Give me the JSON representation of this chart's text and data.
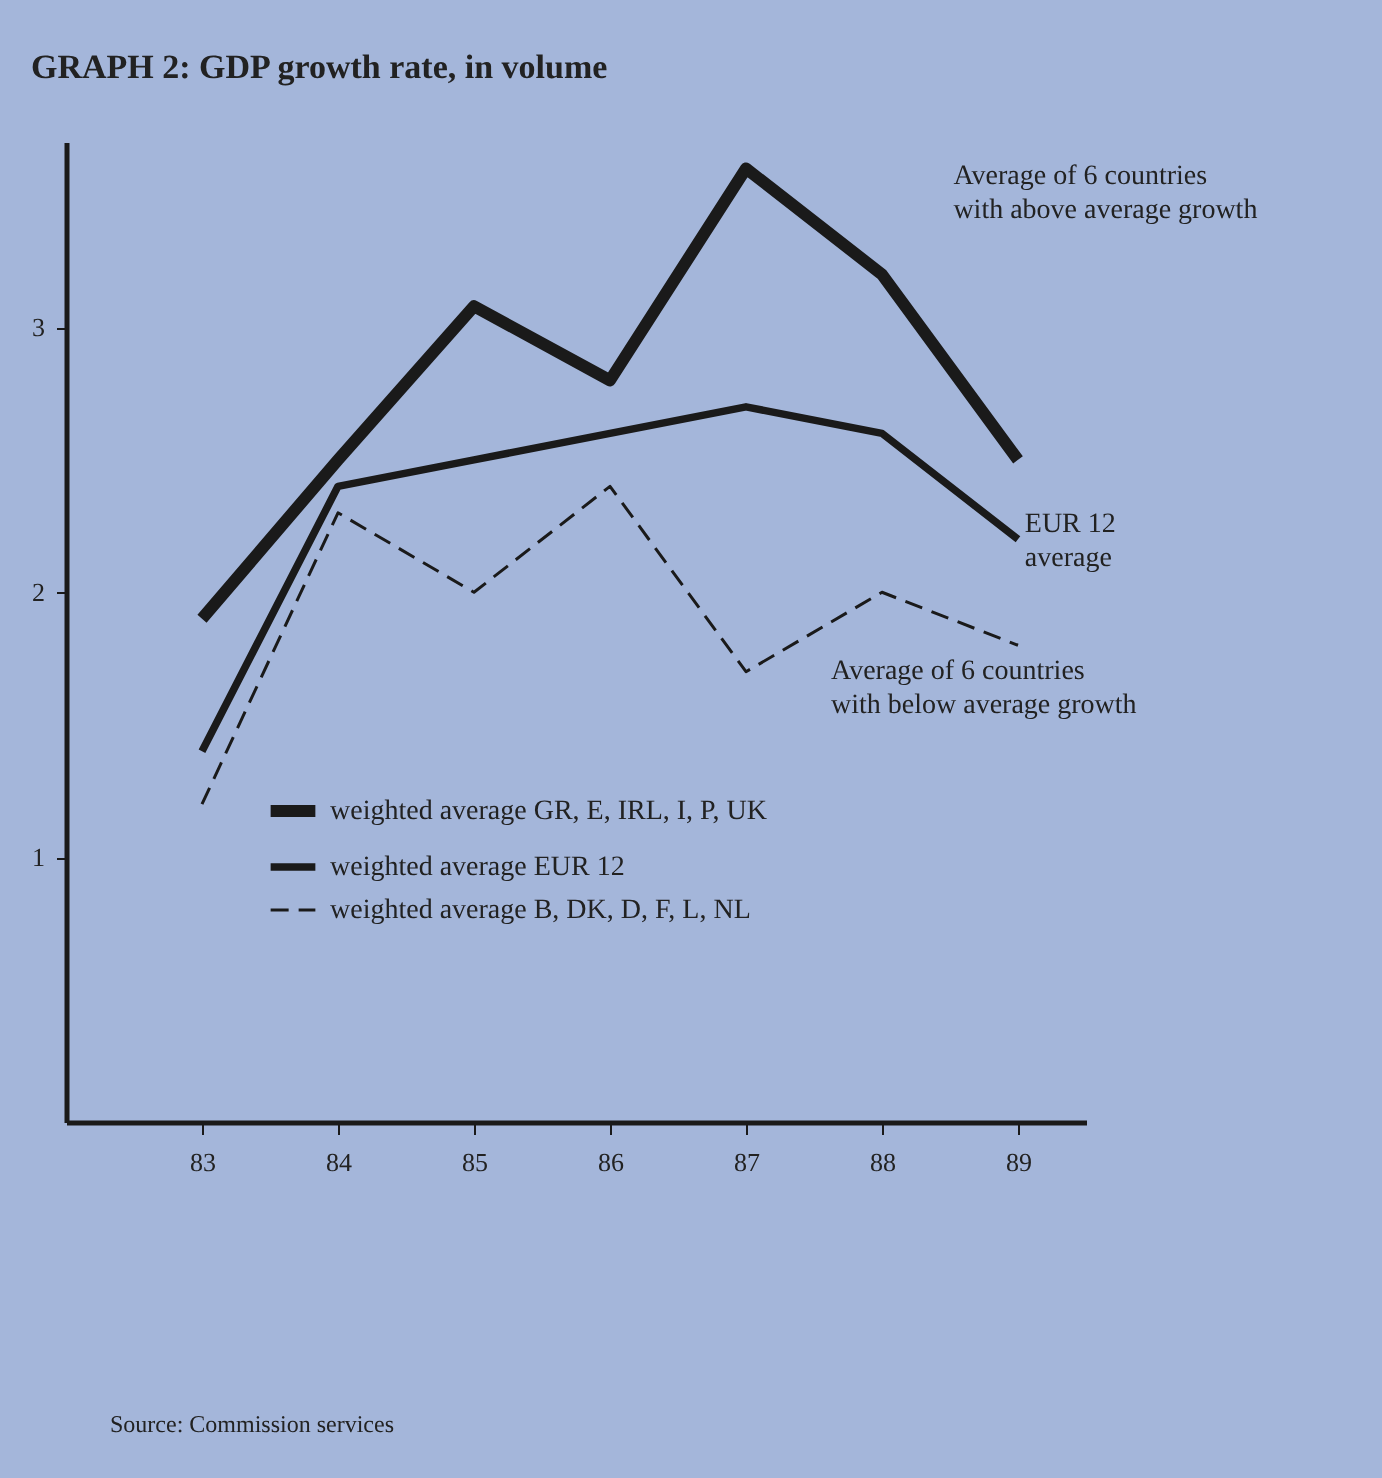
{
  "chart_data": {
    "type": "line",
    "title": "GRAPH 2: GDP growth rate, in volume",
    "x": [
      83,
      84,
      85,
      86,
      87,
      88,
      89
    ],
    "xlim": [
      82,
      89.5
    ],
    "xticks": [
      83,
      84,
      85,
      86,
      87,
      88,
      89
    ],
    "ylim": [
      0,
      3.7
    ],
    "yticks": [
      1,
      2,
      3
    ],
    "series": [
      {
        "name": "weighted average GR, E, IRL, I, P, UK",
        "color": "#1a1a1a",
        "values": [
          1.9,
          2.5,
          3.08,
          2.8,
          3.6,
          3.2,
          2.5
        ]
      },
      {
        "name": "weighted average EUR 12",
        "color": "#1a1a1a",
        "values": [
          1.4,
          2.4,
          2.5,
          2.6,
          2.7,
          2.6,
          2.2
        ]
      },
      {
        "name": "weighted average B, DK, D, F, L, NL",
        "color": "#1a1a1a",
        "line_style": "dashed",
        "values": [
          1.2,
          2.3,
          2.0,
          2.4,
          1.7,
          2.0,
          1.8
        ]
      }
    ],
    "annotations": [
      "Average of 6 countries\nwith above average growth",
      "EUR 12\naverage",
      "Average of 6 countries\nwith below average growth",
      "Source: Commission services"
    ],
    "grid": false,
    "legend": "bottom left"
  }
}
